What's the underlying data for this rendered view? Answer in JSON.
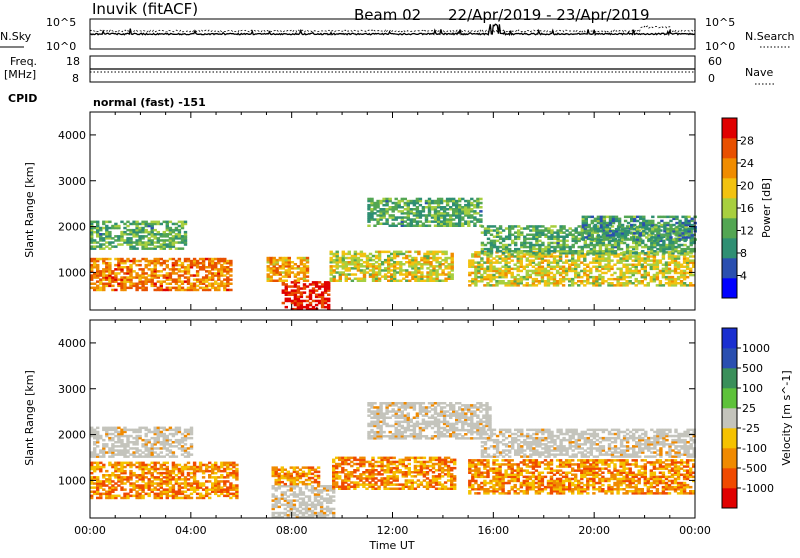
{
  "header": {
    "station": "Inuvik (fitACF)",
    "beam": "Beam 02",
    "daterange": "22/Apr/2019 - 23/Apr/2019"
  },
  "noise_panel": {
    "left_label": "N.Sky",
    "right_label": "N.Search",
    "left_ticks": [
      "10^5",
      "10^0"
    ],
    "right_ticks": [
      "10^5",
      "10^0"
    ]
  },
  "freq_panel": {
    "left_label_1": "Freq.",
    "left_label_2": "[MHz]",
    "right_label": "Nave",
    "left_ticks": [
      "18",
      "8"
    ],
    "right_ticks": [
      "60",
      "0"
    ]
  },
  "cpid": {
    "label": "CPID",
    "value": "normal (fast) -151"
  },
  "colors": {
    "frame": "#000000",
    "ground_scatter": "#c4c4bc",
    "power_scale": [
      "#0000ff",
      "#2a4fb0",
      "#2f8f73",
      "#53a653",
      "#a8cf3f",
      "#f2c210",
      "#f08c00",
      "#e85000",
      "#e00000"
    ],
    "velocity_scale": [
      "#e00000",
      "#f04a00",
      "#f08a00",
      "#f5c200",
      "#c4c4bc",
      "#5ec23a",
      "#3a8f5a",
      "#2a4fb0",
      "#1a2fd0"
    ]
  },
  "chart_data": [
    {
      "type": "heatmap",
      "name": "power",
      "ylabel": "Slant Range [km]",
      "y_ticks": [
        "1000",
        "2000",
        "3000",
        "4000"
      ],
      "ylim": [
        180,
        4500
      ],
      "xlim": [
        "00:00",
        "24:00"
      ],
      "colorbar_label": "Power [dB]",
      "colorbar_ticks": [
        "4",
        "8",
        "12",
        "16",
        "20",
        "24",
        "28"
      ],
      "color_range": [
        0,
        32
      ],
      "regions": [
        {
          "t0": 0.0,
          "t1": 5.6,
          "r0": 600,
          "r1": 1300,
          "level": 24
        },
        {
          "t0": 0.0,
          "t1": 3.8,
          "r0": 1500,
          "r1": 2100,
          "level": 12
        },
        {
          "t0": 7.6,
          "t1": 9.4,
          "r0": 180,
          "r1": 800,
          "level": 30
        },
        {
          "t0": 7.0,
          "t1": 8.6,
          "r0": 800,
          "r1": 1300,
          "level": 22
        },
        {
          "t0": 9.5,
          "t1": 14.3,
          "r0": 800,
          "r1": 1450,
          "level": 18
        },
        {
          "t0": 11.0,
          "t1": 15.5,
          "r0": 2000,
          "r1": 2600,
          "level": 12
        },
        {
          "t0": 15.0,
          "t1": 24.0,
          "r0": 700,
          "r1": 1450,
          "level": 18
        },
        {
          "t0": 15.5,
          "t1": 24.0,
          "r0": 1400,
          "r1": 2000,
          "level": 12
        },
        {
          "t0": 19.5,
          "t1": 24.0,
          "r0": 1700,
          "r1": 2200,
          "level": 10
        }
      ]
    },
    {
      "type": "heatmap",
      "name": "velocity",
      "ylabel": "Slant Range [km]",
      "y_ticks": [
        "1000",
        "2000",
        "3000",
        "4000"
      ],
      "ylim": [
        180,
        4500
      ],
      "xlim": [
        "00:00",
        "24:00"
      ],
      "xlabel": "Time UT",
      "x_ticks": [
        "00:00",
        "04:00",
        "08:00",
        "12:00",
        "16:00",
        "20:00",
        "00:00"
      ],
      "colorbar_label": "Velocity [m s^-1]",
      "colorbar_ticks": [
        "1000",
        "500",
        "100",
        "25",
        "-25",
        "-100",
        "-500",
        "-1000"
      ],
      "regions": [
        {
          "t0": 0.0,
          "t1": 5.8,
          "r0": 600,
          "r1": 1400,
          "class": "-100"
        },
        {
          "t0": 0.0,
          "t1": 4.0,
          "r0": 1500,
          "r1": 2150,
          "class": "gs"
        },
        {
          "t0": 7.2,
          "t1": 9.6,
          "r0": 180,
          "r1": 900,
          "class": "gs"
        },
        {
          "t0": 7.2,
          "t1": 9.0,
          "r0": 900,
          "r1": 1300,
          "class": "-100"
        },
        {
          "t0": 9.6,
          "t1": 14.5,
          "r0": 800,
          "r1": 1500,
          "class": "-100"
        },
        {
          "t0": 11.0,
          "t1": 15.8,
          "r0": 1900,
          "r1": 2700,
          "class": "gs"
        },
        {
          "t0": 15.0,
          "t1": 24.0,
          "r0": 700,
          "r1": 1450,
          "class": "-100"
        },
        {
          "t0": 15.5,
          "t1": 24.0,
          "r0": 1500,
          "r1": 2100,
          "class": "gs"
        }
      ]
    }
  ]
}
